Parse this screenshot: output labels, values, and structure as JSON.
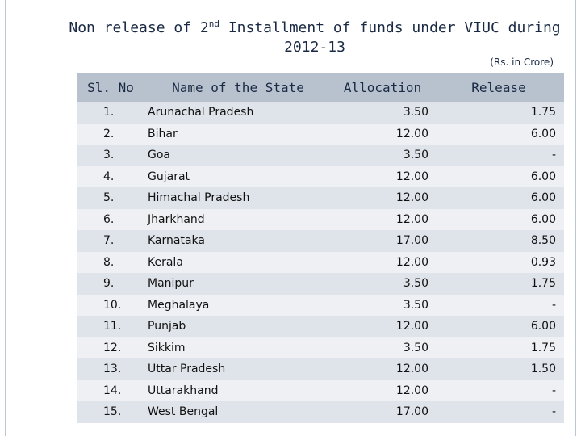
{
  "slide": {
    "title_line1_a": "Non release  of 2",
    "title_line1_sup": "nd",
    "title_line1_b": " Installment  of funds under VIUC during",
    "title_line2": "2012-13",
    "units": "(Rs. in Crore)"
  },
  "table": {
    "headers": {
      "sl_no": "Sl. No",
      "state": "Name of the State",
      "allocation": "Allocation",
      "release": "Release"
    },
    "rows": [
      {
        "sl": "1.",
        "state": "Arunachal Pradesh",
        "allocation": "3.50",
        "release": "1.75"
      },
      {
        "sl": "2.",
        "state": "Bihar",
        "allocation": "12.00",
        "release": "6.00"
      },
      {
        "sl": "3.",
        "state": "Goa",
        "allocation": "3.50",
        "release": "-"
      },
      {
        "sl": "4.",
        "state": "Gujarat",
        "allocation": "12.00",
        "release": "6.00"
      },
      {
        "sl": "5.",
        "state": "Himachal Pradesh",
        "allocation": "12.00",
        "release": "6.00"
      },
      {
        "sl": "6.",
        "state": "Jharkhand",
        "allocation": "12.00",
        "release": "6.00"
      },
      {
        "sl": "7.",
        "state": "Karnataka",
        "allocation": "17.00",
        "release": "8.50"
      },
      {
        "sl": "8.",
        "state": "Kerala",
        "allocation": "12.00",
        "release": "0.93"
      },
      {
        "sl": "9.",
        "state": "Manipur",
        "allocation": "3.50",
        "release": "1.75"
      },
      {
        "sl": "10.",
        "state": "Meghalaya",
        "allocation": "3.50",
        "release": "-"
      },
      {
        "sl": "11.",
        "state": "Punjab",
        "allocation": "12.00",
        "release": "6.00"
      },
      {
        "sl": "12.",
        "state": "Sikkim",
        "allocation": "3.50",
        "release": "1.75"
      },
      {
        "sl": "13.",
        "state": "Uttar Pradesh",
        "allocation": "12.00",
        "release": "1.50"
      },
      {
        "sl": "14.",
        "state": "Uttarakhand",
        "allocation": "12.00",
        "release": "-"
      },
      {
        "sl": "15.",
        "state": "West Bengal",
        "allocation": "17.00",
        "release": "-"
      }
    ]
  }
}
